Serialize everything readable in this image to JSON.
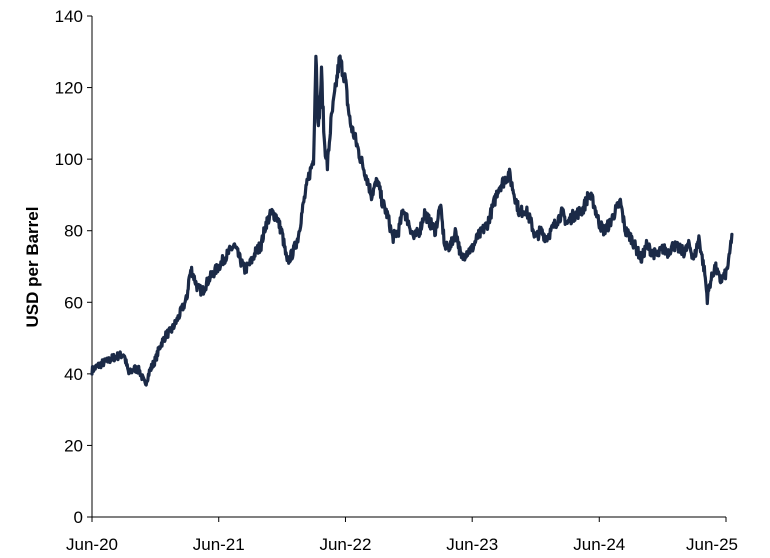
{
  "chart_data": {
    "type": "line",
    "title": "",
    "xlabel": "",
    "ylabel": "USD per Barrel",
    "ylim": [
      0,
      140
    ],
    "yticks": [
      0,
      20,
      40,
      60,
      80,
      100,
      120,
      140
    ],
    "ytick_labels": [
      "0",
      "20",
      "40",
      "60",
      "80",
      "100",
      "120",
      "140"
    ],
    "xlim": [
      "2020-06",
      "2025-06"
    ],
    "xticks": [
      "2020-06",
      "2021-06",
      "2022-06",
      "2023-06",
      "2024-06",
      "2025-06"
    ],
    "xtick_labels": [
      "Jun-20",
      "Jun-21",
      "Jun-22",
      "Jun-23",
      "Jun-24",
      "Jun-25"
    ],
    "grid": false,
    "legend": "none",
    "line_color": "#1b2a47",
    "series": [
      {
        "x": [
          "2020-06-01",
          "2020-06-15",
          "2020-07-01",
          "2020-07-15",
          "2020-08-01",
          "2020-08-15",
          "2020-09-01",
          "2020-09-15",
          "2020-10-01",
          "2020-10-15",
          "2020-11-01",
          "2020-11-15",
          "2020-12-01",
          "2020-12-15",
          "2021-01-01",
          "2021-01-15",
          "2021-02-01",
          "2021-02-15",
          "2021-03-01",
          "2021-03-08",
          "2021-03-15",
          "2021-04-01",
          "2021-04-15",
          "2021-05-01",
          "2021-05-15",
          "2021-06-01",
          "2021-06-15",
          "2021-07-01",
          "2021-07-15",
          "2021-08-01",
          "2021-08-15",
          "2021-09-01",
          "2021-09-15",
          "2021-10-01",
          "2021-10-15",
          "2021-11-01",
          "2021-11-15",
          "2021-12-01",
          "2021-12-15",
          "2022-01-01",
          "2022-01-15",
          "2022-02-01",
          "2022-02-15",
          "2022-03-01",
          "2022-03-08",
          "2022-03-15",
          "2022-03-24",
          "2022-04-01",
          "2022-04-10",
          "2022-04-20",
          "2022-05-01",
          "2022-05-15",
          "2022-06-01",
          "2022-06-08",
          "2022-06-15",
          "2022-07-01",
          "2022-07-15",
          "2022-08-01",
          "2022-08-15",
          "2022-09-01",
          "2022-09-15",
          "2022-10-01",
          "2022-10-15",
          "2022-11-01",
          "2022-11-15",
          "2022-12-01",
          "2022-12-15",
          "2023-01-01",
          "2023-01-15",
          "2023-02-01",
          "2023-02-15",
          "2023-03-01",
          "2023-03-15",
          "2023-04-01",
          "2023-04-15",
          "2023-05-01",
          "2023-05-15",
          "2023-06-01",
          "2023-06-15",
          "2023-07-01",
          "2023-07-15",
          "2023-08-01",
          "2023-08-15",
          "2023-09-01",
          "2023-09-15",
          "2023-10-01",
          "2023-10-15",
          "2023-11-01",
          "2023-11-15",
          "2023-12-01",
          "2023-12-15",
          "2024-01-01",
          "2024-01-15",
          "2024-02-01",
          "2024-02-15",
          "2024-03-01",
          "2024-03-15",
          "2024-04-01",
          "2024-04-15",
          "2024-05-01",
          "2024-05-15",
          "2024-06-01",
          "2024-06-15",
          "2024-07-01",
          "2024-07-15",
          "2024-08-01",
          "2024-08-15",
          "2024-09-01",
          "2024-09-15",
          "2024-10-01",
          "2024-10-15",
          "2024-11-01",
          "2024-11-15",
          "2024-12-01",
          "2024-12-15",
          "2025-01-01",
          "2025-01-15",
          "2025-02-01",
          "2025-02-15",
          "2025-03-01",
          "2025-03-15",
          "2025-04-01",
          "2025-04-08",
          "2025-04-15",
          "2025-05-01",
          "2025-05-15",
          "2025-06-01",
          "2025-06-10",
          "2025-06-18"
        ],
        "values": [
          41,
          42,
          43,
          43.5,
          44.5,
          45,
          45.5,
          40,
          41.5,
          41,
          37,
          41,
          44,
          48,
          51,
          52,
          55,
          58,
          61,
          67,
          69,
          64,
          63,
          66,
          68,
          70,
          72,
          74,
          76,
          72,
          69,
          71,
          74,
          76,
          82,
          85,
          84,
          79,
          71,
          74,
          78,
          88,
          95,
          100,
          130,
          108,
          124,
          105,
          98,
          110,
          118,
          128,
          122,
          115,
          110,
          105,
          100,
          95,
          90,
          94,
          88,
          84,
          78,
          80,
          86,
          82,
          78,
          80,
          85,
          82,
          80,
          87,
          75,
          76,
          80,
          72,
          74,
          75,
          78,
          80,
          82,
          87,
          92,
          94,
          96,
          90,
          85,
          86,
          83,
          78,
          80,
          78,
          80,
          83,
          85,
          82,
          84,
          85,
          86,
          90,
          88,
          82,
          80,
          82,
          85,
          88,
          80,
          78,
          75,
          72,
          76,
          74,
          73,
          75,
          74,
          76,
          75,
          74,
          76,
          72,
          78,
          68,
          61,
          65,
          70,
          66,
          68,
          72,
          79
        ]
      }
    ]
  }
}
